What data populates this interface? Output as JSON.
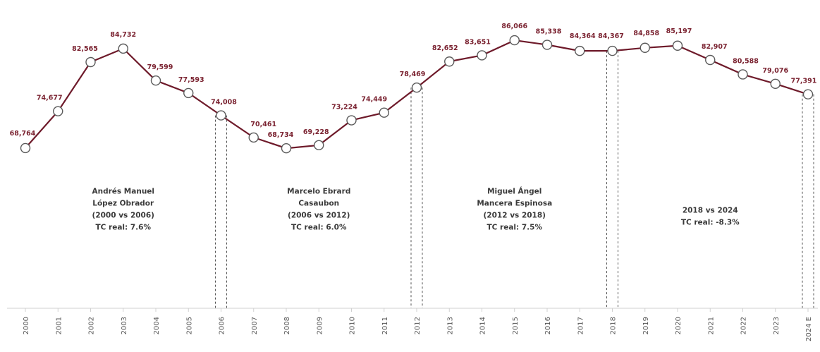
{
  "chart_data": {
    "type": "line",
    "categories": [
      "2000",
      "2001",
      "2002",
      "2003",
      "2004",
      "2005",
      "2006",
      "2007",
      "2008",
      "2009",
      "2010",
      "2011",
      "2012",
      "2013",
      "2014",
      "2015",
      "2016",
      "2017",
      "2018",
      "2019",
      "2020",
      "2021",
      "2022",
      "2023",
      "2024 E"
    ],
    "values": [
      68764,
      74677,
      82565,
      84732,
      79599,
      77593,
      74008,
      70461,
      68734,
      69228,
      73224,
      74449,
      78469,
      82652,
      83651,
      86066,
      85338,
      84364,
      84367,
      84858,
      85197,
      82907,
      80588,
      79076,
      77391
    ],
    "value_labels": [
      "68,764",
      "74,677",
      "82,565",
      "84,732",
      "79,599",
      "77,593",
      "74,008",
      "70,461",
      "68,734",
      "69,228",
      "73,224",
      "74,449",
      "78,469",
      "82,652",
      "83,651",
      "86,066",
      "85,338",
      "84,364",
      "84,367",
      "84,858",
      "85,197",
      "82,907",
      "80,588",
      "79,076",
      "77,391"
    ],
    "ylim": [
      58000,
      88000
    ],
    "line_color": "#6e1a2a",
    "label_color": "#7a2230",
    "grid": false,
    "period_dividers": [
      "2006",
      "2012",
      "2018",
      "2024 E"
    ],
    "periods": [
      {
        "lines": [
          "Andrés Manuel",
          "López Obrador",
          "(2000 vs 2006)",
          "TC real: 7.6%"
        ],
        "from": "2000",
        "to": "2006"
      },
      {
        "lines": [
          "Marcelo Ebrard",
          "Casaubon",
          "(2006 vs 2012)",
          "TC real: 6.0%"
        ],
        "from": "2006",
        "to": "2012"
      },
      {
        "lines": [
          "Miguel Ángel",
          "Mancera Espinosa",
          "(2012 vs 2018)",
          "TC real: 7.5%"
        ],
        "from": "2012",
        "to": "2018"
      },
      {
        "lines": [
          "2018 vs 2024",
          "TC real: -8.3%"
        ],
        "from": "2018",
        "to": "2024 E"
      }
    ]
  }
}
